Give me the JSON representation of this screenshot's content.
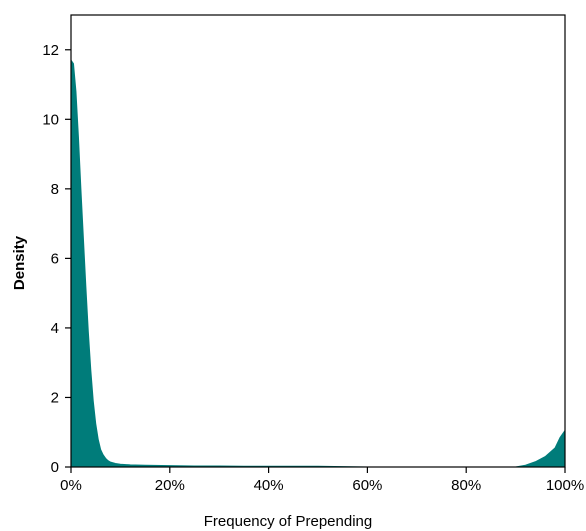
{
  "chart_data": {
    "type": "area",
    "title": "",
    "xlabel": "Frequency of Prepending",
    "ylabel": "Density",
    "xlim": [
      0,
      1
    ],
    "ylim": [
      0,
      13
    ],
    "grid": false,
    "fill_color": "#007c7a",
    "xticks": [
      {
        "value": 0.0,
        "label": "0%"
      },
      {
        "value": 0.2,
        "label": "20%"
      },
      {
        "value": 0.4,
        "label": "40%"
      },
      {
        "value": 0.6,
        "label": "60%"
      },
      {
        "value": 0.8,
        "label": "80%"
      },
      {
        "value": 1.0,
        "label": "100%"
      }
    ],
    "yticks": [
      {
        "value": 0,
        "label": "0"
      },
      {
        "value": 2,
        "label": "2"
      },
      {
        "value": 4,
        "label": "4"
      },
      {
        "value": 6,
        "label": "6"
      },
      {
        "value": 8,
        "label": "8"
      },
      {
        "value": 10,
        "label": "10"
      },
      {
        "value": 12,
        "label": "12"
      }
    ],
    "series": [
      {
        "x": [
          0.0,
          0.005,
          0.01,
          0.015,
          0.02,
          0.025,
          0.03,
          0.035,
          0.04,
          0.045,
          0.05,
          0.055,
          0.06,
          0.065,
          0.07,
          0.075,
          0.08,
          0.09,
          0.1,
          0.12,
          0.15,
          0.2,
          0.25,
          0.3,
          0.35,
          0.4,
          0.45,
          0.5,
          0.55,
          0.6,
          0.65,
          0.7,
          0.75,
          0.8,
          0.85,
          0.88,
          0.9,
          0.92,
          0.94,
          0.96,
          0.98,
          0.99,
          1.0
        ],
        "y": [
          11.7,
          11.6,
          10.8,
          9.5,
          8.0,
          6.6,
          5.2,
          3.9,
          2.8,
          1.9,
          1.25,
          0.8,
          0.5,
          0.35,
          0.25,
          0.18,
          0.14,
          0.1,
          0.08,
          0.06,
          0.05,
          0.04,
          0.03,
          0.03,
          0.02,
          0.02,
          0.02,
          0.02,
          0.01,
          0.0,
          0.0,
          0.0,
          0.0,
          0.0,
          0.0,
          0.0,
          0.0,
          0.05,
          0.15,
          0.3,
          0.55,
          0.85,
          1.05
        ]
      }
    ]
  }
}
